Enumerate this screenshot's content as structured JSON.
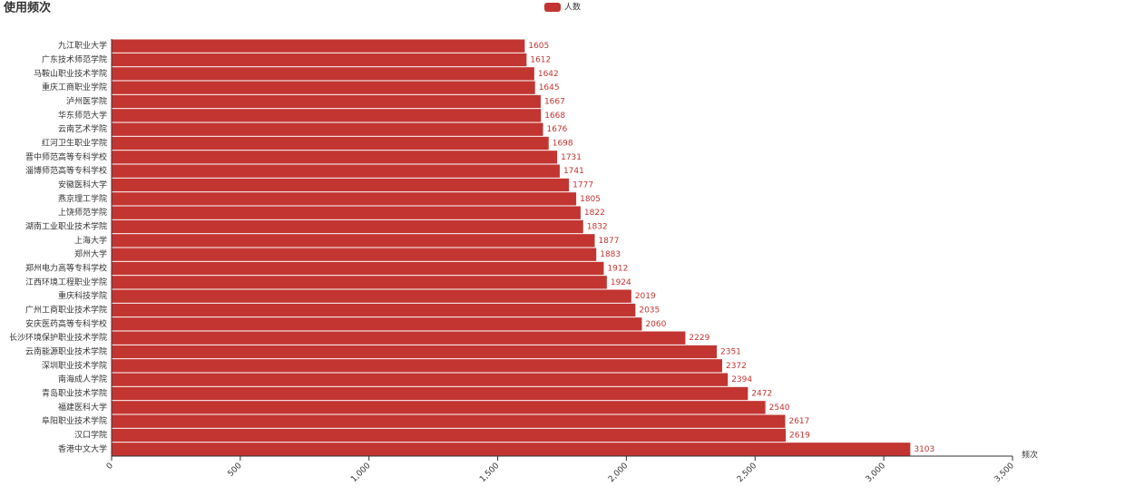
{
  "chart_data": {
    "type": "bar",
    "orientation": "horizontal",
    "title": "使用频次",
    "x_label": "频次",
    "series": [
      {
        "name": "人数",
        "color": "#c23531",
        "values": [
          1605,
          1612,
          1642,
          1645,
          1667,
          1668,
          1676,
          1698,
          1731,
          1741,
          1777,
          1805,
          1822,
          1832,
          1877,
          1883,
          1912,
          1924,
          2019,
          2035,
          2060,
          2229,
          2351,
          2372,
          2394,
          2472,
          2540,
          2617,
          2619,
          3103
        ]
      }
    ],
    "categories": [
      "九江职业大学",
      "广东技术师范学院",
      "马鞍山职业技术学院",
      "重庆工商职业学院",
      "泸州医学院",
      "华东师范大学",
      "云南艺术学院",
      "红河卫生职业学院",
      "晋中师范高等专科学校",
      "淄博师范高等专科学校",
      "安徽医科大学",
      "燕京理工学院",
      "上饶师范学院",
      "湖南工业职业技术学院",
      "上海大学",
      "郑州大学",
      "郑州电力高等专科学校",
      "江西环境工程职业学院",
      "重庆科技学院",
      "广州工商职业技术学院",
      "安庆医药高等专科学校",
      "长沙环境保护职业技术学院",
      "云南能源职业技术学院",
      "深圳职业技术学院",
      "南海成人学院",
      "青岛职业技术学院",
      "福建医科大学",
      "阜阳职业技术学院",
      "汉口学院",
      "香港中文大学"
    ],
    "xlim": [
      0,
      3500
    ],
    "xticks": [
      0,
      500,
      {
        "value": 1000,
        "label": "1,000"
      },
      {
        "value": 1500,
        "label": "1,500"
      },
      {
        "value": 2000,
        "label": "2,000"
      },
      {
        "value": 2500,
        "label": "2,500"
      },
      {
        "value": 3000,
        "label": "3,000"
      },
      {
        "value": 3500,
        "label": "3,500"
      }
    ]
  }
}
